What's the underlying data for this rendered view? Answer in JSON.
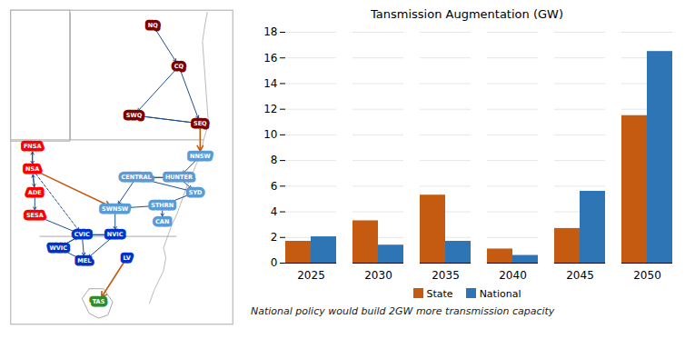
{
  "chart_data": [
    {
      "type": "bar",
      "title": "Tansmission Augmentation (GW)",
      "categories": [
        "2025",
        "2030",
        "2035",
        "2040",
        "2045",
        "2050"
      ],
      "series": [
        {
          "name": "State",
          "color": "#C55A11",
          "values": [
            1.7,
            3.3,
            5.3,
            1.1,
            2.7,
            11.5
          ]
        },
        {
          "name": "National",
          "color": "#2E75B6",
          "values": [
            2.05,
            1.4,
            1.7,
            0.6,
            5.6,
            16.5
          ]
        }
      ],
      "ylim": [
        0,
        18
      ],
      "yticks": [
        0,
        2,
        4,
        6,
        8,
        10,
        12,
        14,
        16,
        18
      ],
      "grid": true,
      "legend": "bottom",
      "caption": "National policy would build 2GW more transmission capacity"
    },
    {
      "type": "network",
      "annotations": [
        "NQ",
        "CQ",
        "SWQ",
        "SEQ",
        "NNSW",
        "CENTRAL",
        "HUNTER",
        "SYD",
        "STHRN",
        "CAN",
        "SWNSW",
        "FNSA",
        "NSA",
        "ADE",
        "SESA",
        "CVIC",
        "NVIC",
        "WVIC",
        "MEL",
        "LV",
        "TAS"
      ],
      "colors": [
        "#7B0000",
        "#7B0000",
        "#7B0000",
        "#7B0000",
        "#5B9BD5",
        "#5B9BD5",
        "#5B9BD5",
        "#5B9BD5",
        "#5B9BD5",
        "#5B9BD5",
        "#5B9BD5",
        "#FF0000",
        "#FF0000",
        "#FF0000",
        "#FF0000",
        "#0033CC",
        "#0033CC",
        "#0033CC",
        "#0033CC",
        "#0033CC",
        "#2E8B2E"
      ]
    }
  ]
}
